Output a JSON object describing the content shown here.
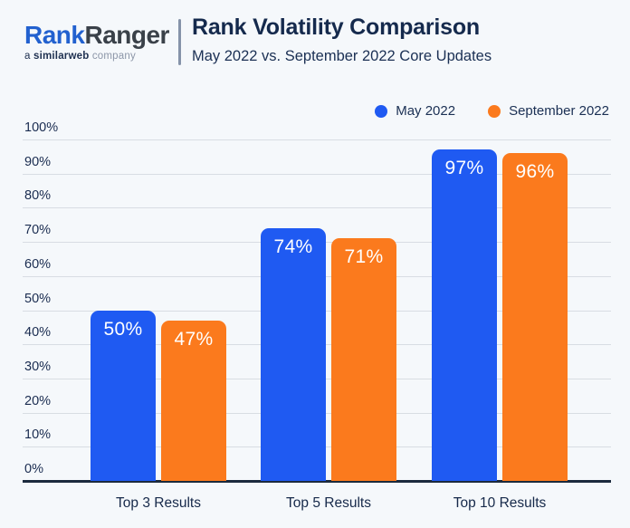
{
  "header": {
    "logo": {
      "part1": "Rank",
      "part2": "Ranger",
      "tagline_prefix": "a ",
      "tagline_brand": "similarweb",
      "tagline_suffix": " company"
    },
    "title": "Rank Volatility Comparison",
    "subtitle": "May 2022 vs. September 2022 Core Updates"
  },
  "colors": {
    "background": "#f5f8fb",
    "may_blue": "#1f5af2",
    "september_orange": "#fb7a1d",
    "navy_text": "#152a4d",
    "gridline": "#d8dde3",
    "axis": "#1b2a3d"
  },
  "chart_data": {
    "type": "bar",
    "title": "Rank Volatility Comparison",
    "subtitle": "May 2022 vs. September 2022 Core Updates",
    "categories": [
      "Top 3 Results",
      "Top 5 Results",
      "Top 10 Results"
    ],
    "series": [
      {
        "name": "May 2022",
        "color": "#1f5af2",
        "values": [
          50,
          74,
          97
        ]
      },
      {
        "name": "September 2022",
        "color": "#fb7a1d",
        "values": [
          47,
          71,
          96
        ]
      }
    ],
    "value_suffix": "%",
    "y_ticks": [
      "100%",
      "90%",
      "80%",
      "70%",
      "60%",
      "50%",
      "40%",
      "30%",
      "20%",
      "10%",
      "0%"
    ],
    "ylim": [
      0,
      100
    ],
    "grid": true,
    "legend_position": "top-right",
    "xlabel": "",
    "ylabel": ""
  }
}
